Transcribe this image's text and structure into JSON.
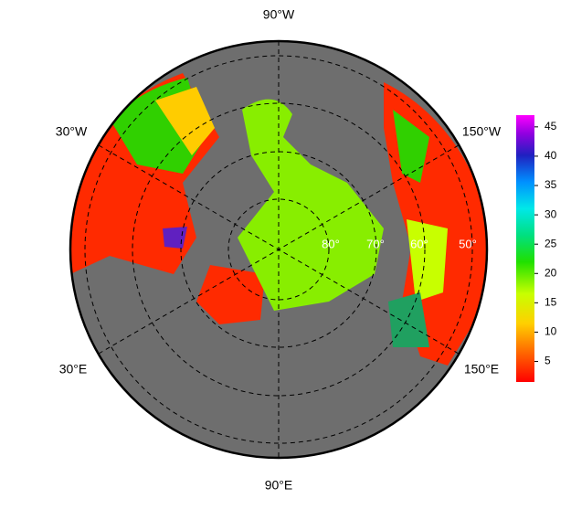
{
  "map": {
    "longitude_labels": [
      "90°W",
      "30°W",
      "150°W",
      "30°E",
      "150°E",
      "90°E"
    ],
    "latitude_labels": [
      "80°",
      "70°",
      "60°",
      "50°"
    ],
    "colorbar": {
      "range": [
        1.5,
        47
      ],
      "ticks": [
        5,
        10,
        15,
        20,
        25,
        30,
        35,
        40,
        45
      ]
    }
  }
}
